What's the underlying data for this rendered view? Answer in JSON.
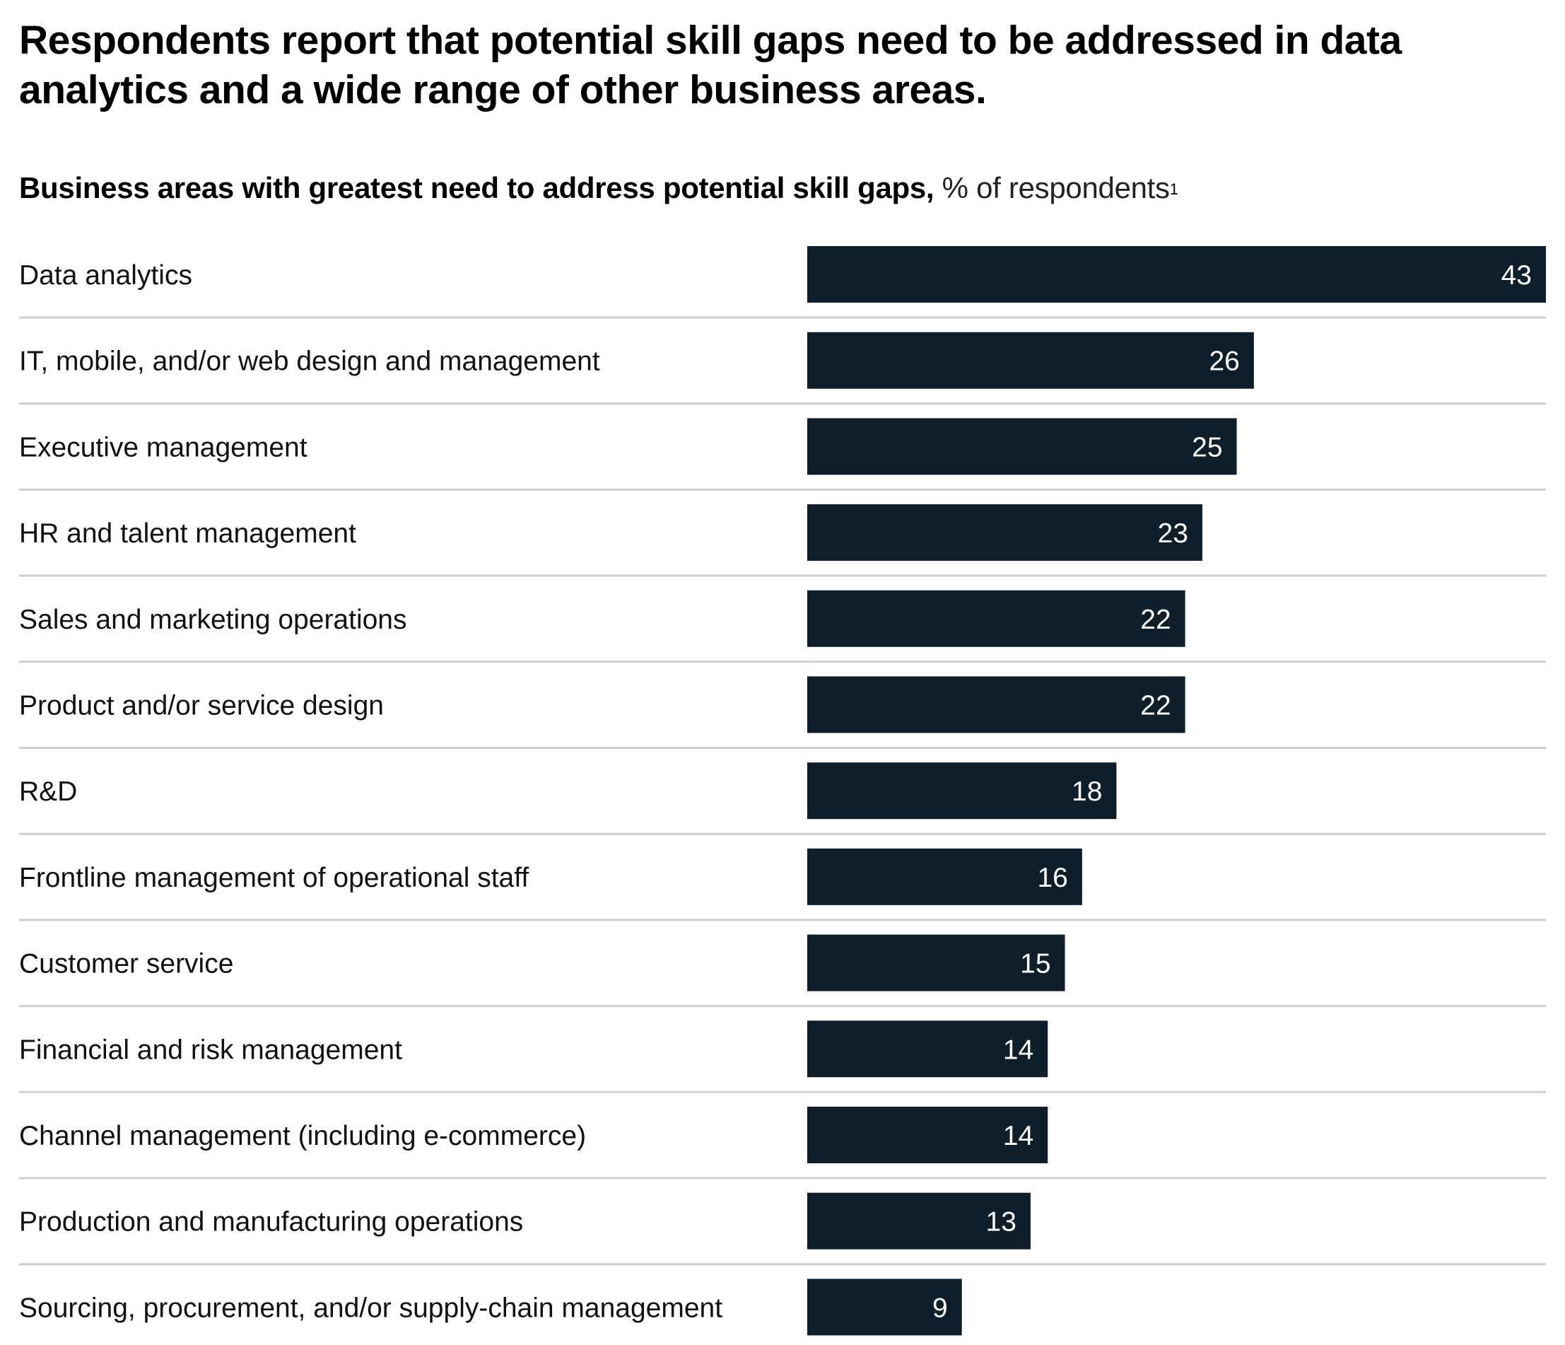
{
  "header": {
    "title": "Respondents report that potential skill gaps need to be addressed in data analytics and a wide range of other business areas.",
    "subtitle_bold": "Business areas with greatest need to address potential skill gaps,",
    "subtitle_light": " % of respondents",
    "footnote_marker": "1"
  },
  "colors": {
    "bar": "#0e1e2b",
    "bar_label": "#ffffff",
    "divider": "#cfcfcf"
  },
  "chart_data": {
    "type": "bar",
    "orientation": "horizontal",
    "title": "Business areas with greatest need to address potential skill gaps, % of respondents",
    "xlabel": "",
    "ylabel": "",
    "xlim": [
      0,
      43
    ],
    "grid": false,
    "legend": "none",
    "categories": [
      "Data analytics",
      "IT, mobile, and/or web design and management",
      "Executive management",
      "HR and talent management",
      "Sales and marketing operations",
      "Product and/or service design",
      "R&D",
      "Frontline management of operational staff",
      "Customer service",
      "Financial and risk management",
      "Channel management (including e-commerce)",
      "Production and manufacturing operations",
      "Sourcing, procurement, and/or supply-chain management"
    ],
    "values": [
      43,
      26,
      25,
      23,
      22,
      22,
      18,
      16,
      15,
      14,
      14,
      13,
      9
    ]
  }
}
